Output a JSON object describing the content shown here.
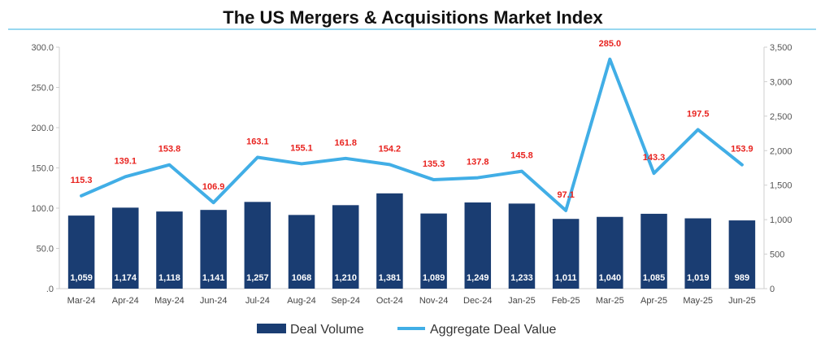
{
  "chart_data": {
    "type": "bar",
    "title": "The US Mergers & Acquisitions Market Index",
    "categories": [
      "Mar-24",
      "Apr-24",
      "May-24",
      "Jun-24",
      "Jul-24",
      "Aug-24",
      "Sep-24",
      "Oct-24",
      "Nov-24",
      "Dec-24",
      "Jan-25",
      "Feb-25",
      "Mar-25",
      "Apr-25",
      "May-25",
      "Jun-25"
    ],
    "series": [
      {
        "name": "Deal Volume",
        "type": "bar",
        "axis": "right",
        "color": "#1a3d72",
        "values": [
          1059,
          1174,
          1118,
          1141,
          1257,
          1068,
          1210,
          1381,
          1089,
          1249,
          1233,
          1011,
          1040,
          1085,
          1019,
          989
        ],
        "labels": [
          "1,059",
          "1,174",
          "1,118",
          "1,141",
          "1,257",
          "1068",
          "1,210",
          "1,381",
          "1,089",
          "1,249",
          "1,233",
          "1,011",
          "1,040",
          "1,085",
          "1,019",
          "989"
        ]
      },
      {
        "name": "Aggregate Deal Value",
        "type": "line",
        "axis": "left",
        "color": "#41aee6",
        "label_color": "#e8231f",
        "values": [
          115.3,
          139.1,
          153.8,
          106.9,
          163.1,
          155.1,
          161.8,
          154.2,
          135.3,
          137.8,
          145.8,
          97.1,
          285.0,
          143.3,
          197.5,
          153.9
        ],
        "labels": [
          "115.3",
          "139.1",
          "153.8",
          "106.9",
          "163.1",
          "155.1",
          "161.8",
          "154.2",
          "135.3",
          "137.8",
          "145.8",
          "97.1",
          "285.0",
          "143.3",
          "197.5",
          "153.9"
        ]
      }
    ],
    "y_left": {
      "range": [
        0,
        300
      ],
      "ticks": [
        0,
        50,
        100,
        150,
        200,
        250,
        300
      ],
      "tick_labels": [
        ".0",
        "50.0",
        "100.0",
        "150.0",
        "200.0",
        "250.0",
        "300.0"
      ]
    },
    "y_right": {
      "range": [
        0,
        3500
      ],
      "ticks": [
        0,
        500,
        1000,
        1500,
        2000,
        2500,
        3000,
        3500
      ],
      "tick_labels": [
        "0",
        "500",
        "1,000",
        "1,500",
        "2,000",
        "2,500",
        "3,000",
        "3,500"
      ]
    },
    "grid": false,
    "legend": "bottom-center",
    "title_rule_color": "#5bc0e8"
  }
}
